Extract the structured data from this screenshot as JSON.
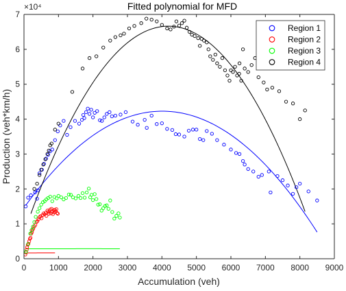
{
  "chart_data": {
    "type": "scatter",
    "title": "Fitted polynomial for MFD",
    "xlabel": "Accumulation (veh)",
    "ylabel": "Production (veh*km/h)",
    "xlim": [
      0,
      9000
    ],
    "ylim": [
      0,
      70000
    ],
    "y_exponent_label": "×10⁴",
    "x_ticks": [
      0,
      1000,
      2000,
      3000,
      4000,
      5000,
      6000,
      7000,
      8000,
      9000
    ],
    "x_tick_labels": [
      "0",
      "1000",
      "2000",
      "3000",
      "4000",
      "5000",
      "6000",
      "7000",
      "8000",
      "9000"
    ],
    "y_ticks": [
      0,
      10000,
      20000,
      30000,
      40000,
      50000,
      60000,
      70000
    ],
    "y_tick_labels": [
      "0",
      "1",
      "2",
      "3",
      "4",
      "5",
      "6",
      "7"
    ],
    "grid": false,
    "legend_position": "top-right",
    "series": [
      {
        "name": "Region 1",
        "color": "#0000ff",
        "marker": "circle",
        "fit": {
          "a": -0.00172,
          "b": 13.8,
          "c": 14600,
          "x_range": [
            50,
            8500
          ]
        },
        "points": [
          [
            50,
            15000
          ],
          [
            120,
            17500
          ],
          [
            200,
            18200
          ],
          [
            320,
            19000
          ],
          [
            380,
            17200
          ],
          [
            400,
            19600
          ],
          [
            450,
            24500
          ],
          [
            520,
            25500
          ],
          [
            580,
            27200
          ],
          [
            640,
            28700
          ],
          [
            700,
            29800
          ],
          [
            760,
            30800
          ],
          [
            820,
            31300
          ],
          [
            900,
            34000
          ],
          [
            980,
            36500
          ],
          [
            1050,
            38200
          ],
          [
            1150,
            39500
          ],
          [
            1250,
            35500
          ],
          [
            1350,
            37700
          ],
          [
            1480,
            39500
          ],
          [
            1600,
            38700
          ],
          [
            1680,
            39800
          ],
          [
            1720,
            41200
          ],
          [
            1750,
            40300
          ],
          [
            1800,
            42000
          ],
          [
            1850,
            43000
          ],
          [
            1900,
            41500
          ],
          [
            1950,
            42700
          ],
          [
            2000,
            40500
          ],
          [
            2050,
            41800
          ],
          [
            2120,
            42300
          ],
          [
            2200,
            39700
          ],
          [
            2260,
            39500
          ],
          [
            2330,
            40500
          ],
          [
            2400,
            41500
          ],
          [
            2480,
            42000
          ],
          [
            2550,
            40800
          ],
          [
            2650,
            41000
          ],
          [
            2800,
            41300
          ],
          [
            2950,
            42000
          ],
          [
            3150,
            39300
          ],
          [
            3300,
            38400
          ],
          [
            3500,
            39800
          ],
          [
            3560,
            37500
          ],
          [
            3700,
            41000
          ],
          [
            3850,
            38600
          ],
          [
            4000,
            38800
          ],
          [
            4150,
            37200
          ],
          [
            4300,
            36900
          ],
          [
            4400,
            35700
          ],
          [
            4500,
            35600
          ],
          [
            4650,
            35000
          ],
          [
            4780,
            36700
          ],
          [
            4900,
            37000
          ],
          [
            5000,
            37000
          ],
          [
            5100,
            34300
          ],
          [
            5200,
            34000
          ],
          [
            5300,
            36600
          ],
          [
            5450,
            35800
          ],
          [
            5600,
            34000
          ],
          [
            5800,
            32700
          ],
          [
            6000,
            31300
          ],
          [
            6150,
            30300
          ],
          [
            6250,
            30000
          ],
          [
            6350,
            28000
          ],
          [
            6400,
            27000
          ],
          [
            6500,
            25700
          ],
          [
            6650,
            25000
          ],
          [
            6800,
            23500
          ],
          [
            6900,
            24000
          ],
          [
            7100,
            25000
          ],
          [
            7150,
            19000
          ],
          [
            7350,
            23700
          ],
          [
            7500,
            22500
          ],
          [
            7650,
            21000
          ],
          [
            7800,
            18600
          ],
          [
            7900,
            20500
          ],
          [
            8000,
            21500
          ],
          [
            8250,
            19300
          ],
          [
            8500,
            16700
          ]
        ]
      },
      {
        "name": "Region 2",
        "color": "#ff0000",
        "marker": "circle",
        "fit": {
          "a": -1.82e-05,
          "b": 0.0298,
          "c": 1650,
          "x_range": [
            40,
            900
          ]
        },
        "points": [
          [
            40,
            1200
          ],
          [
            60,
            1800
          ],
          [
            80,
            2600
          ],
          [
            90,
            3300
          ],
          [
            110,
            4000
          ],
          [
            130,
            4300
          ],
          [
            150,
            5000
          ],
          [
            170,
            5700
          ],
          [
            190,
            6000
          ],
          [
            210,
            7200
          ],
          [
            230,
            7600
          ],
          [
            250,
            8300
          ],
          [
            270,
            8700
          ],
          [
            300,
            9300
          ],
          [
            330,
            9700
          ],
          [
            360,
            10500
          ],
          [
            390,
            10800
          ],
          [
            420,
            11300
          ],
          [
            450,
            11900
          ],
          [
            480,
            12200
          ],
          [
            510,
            11600
          ],
          [
            540,
            12500
          ],
          [
            570,
            13000
          ],
          [
            600,
            12700
          ],
          [
            630,
            13200
          ],
          [
            650,
            12300
          ],
          [
            680,
            13800
          ],
          [
            700,
            13400
          ],
          [
            720,
            12900
          ],
          [
            740,
            13600
          ],
          [
            760,
            14100
          ],
          [
            780,
            13000
          ],
          [
            800,
            14300
          ],
          [
            820,
            13500
          ],
          [
            840,
            12800
          ],
          [
            860,
            13900
          ],
          [
            880,
            13300
          ],
          [
            900,
            14000
          ],
          [
            920,
            13600
          ],
          [
            940,
            14200
          ],
          [
            960,
            13100
          ],
          [
            980,
            12900
          ]
        ]
      },
      {
        "name": "Region 3",
        "color": "#00ff00",
        "marker": "circle",
        "fit": {
          "a": -4.05e-06,
          "b": 0.0153,
          "c": 2850,
          "x_range": [
            60,
            2780
          ]
        },
        "points": [
          [
            60,
            2000
          ],
          [
            120,
            4200
          ],
          [
            180,
            7200
          ],
          [
            220,
            8200
          ],
          [
            260,
            9200
          ],
          [
            300,
            10500
          ],
          [
            340,
            12000
          ],
          [
            400,
            13500
          ],
          [
            450,
            14500
          ],
          [
            500,
            15500
          ],
          [
            550,
            16200
          ],
          [
            600,
            16500
          ],
          [
            650,
            17000
          ],
          [
            700,
            17400
          ],
          [
            760,
            17800
          ],
          [
            820,
            16500
          ],
          [
            880,
            17700
          ],
          [
            950,
            17300
          ],
          [
            1000,
            18000
          ],
          [
            1080,
            17600
          ],
          [
            1150,
            17000
          ],
          [
            1220,
            17400
          ],
          [
            1300,
            18400
          ],
          [
            1360,
            18300
          ],
          [
            1420,
            17600
          ],
          [
            1500,
            17300
          ],
          [
            1580,
            18000
          ],
          [
            1640,
            17400
          ],
          [
            1700,
            18800
          ],
          [
            1760,
            17500
          ],
          [
            1820,
            19000
          ],
          [
            1880,
            20100
          ],
          [
            1920,
            17600
          ],
          [
            1960,
            18300
          ],
          [
            2000,
            16800
          ],
          [
            2050,
            18500
          ],
          [
            2100,
            17100
          ],
          [
            2150,
            15500
          ],
          [
            2200,
            15600
          ],
          [
            2250,
            13800
          ],
          [
            2300,
            14500
          ],
          [
            2350,
            15100
          ],
          [
            2400,
            15300
          ],
          [
            2450,
            14300
          ],
          [
            2500,
            16700
          ],
          [
            2560,
            13400
          ],
          [
            2620,
            11500
          ],
          [
            2680,
            12300
          ],
          [
            2740,
            13000
          ],
          [
            2780,
            11800
          ]
        ]
      },
      {
        "name": "Region 4",
        "color": "#000000",
        "marker": "circle",
        "fit": {
          "a": -0.00338,
          "b": 28.3,
          "c": 7400,
          "x_range": [
            200,
            8150
          ]
        },
        "points": [
          [
            300,
            20000
          ],
          [
            380,
            21500
          ],
          [
            450,
            24000
          ],
          [
            500,
            25500
          ],
          [
            560,
            27000
          ],
          [
            620,
            28500
          ],
          [
            680,
            30000
          ],
          [
            720,
            31000
          ],
          [
            760,
            32500
          ],
          [
            800,
            33000
          ],
          [
            900,
            37000
          ],
          [
            1000,
            38700
          ],
          [
            1400,
            47800
          ],
          [
            1700,
            54500
          ],
          [
            1900,
            57500
          ],
          [
            2100,
            58000
          ],
          [
            2300,
            60500
          ],
          [
            2500,
            62500
          ],
          [
            2650,
            63500
          ],
          [
            2800,
            64000
          ],
          [
            2900,
            64500
          ],
          [
            3050,
            66000
          ],
          [
            3200,
            66700
          ],
          [
            3400,
            67500
          ],
          [
            3550,
            68800
          ],
          [
            3700,
            68500
          ],
          [
            3850,
            68000
          ],
          [
            4000,
            67000
          ],
          [
            4150,
            66000
          ],
          [
            4250,
            65700
          ],
          [
            4350,
            66500
          ],
          [
            4420,
            68000
          ],
          [
            4500,
            66800
          ],
          [
            4580,
            67500
          ],
          [
            4650,
            68200
          ],
          [
            4720,
            66200
          ],
          [
            4800,
            65000
          ],
          [
            4870,
            64200
          ],
          [
            4950,
            63800
          ],
          [
            5050,
            63200
          ],
          [
            5100,
            61000
          ],
          [
            5150,
            63000
          ],
          [
            5220,
            62500
          ],
          [
            5300,
            62000
          ],
          [
            5350,
            60000
          ],
          [
            5400,
            58000
          ],
          [
            5480,
            57000
          ],
          [
            5550,
            58500
          ],
          [
            5600,
            56000
          ],
          [
            5680,
            55000
          ],
          [
            5750,
            57500
          ],
          [
            5830,
            54000
          ],
          [
            5900,
            52500
          ],
          [
            5960,
            51000
          ],
          [
            6000,
            54000
          ],
          [
            6060,
            53500
          ],
          [
            6120,
            55000
          ],
          [
            6180,
            52500
          ],
          [
            6240,
            53000
          ],
          [
            6300,
            51000
          ],
          [
            6400,
            54500
          ],
          [
            6500,
            53500
          ],
          [
            6600,
            55500
          ],
          [
            6700,
            57500
          ],
          [
            6800,
            52000
          ],
          [
            6950,
            50500
          ],
          [
            7050,
            48500
          ],
          [
            7200,
            49000
          ],
          [
            7400,
            48000
          ],
          [
            7600,
            45000
          ],
          [
            7800,
            44500
          ],
          [
            8000,
            40000
          ],
          [
            8150,
            42500
          ],
          [
            6250,
            56000
          ],
          [
            6350,
            60000
          ]
        ]
      }
    ]
  }
}
